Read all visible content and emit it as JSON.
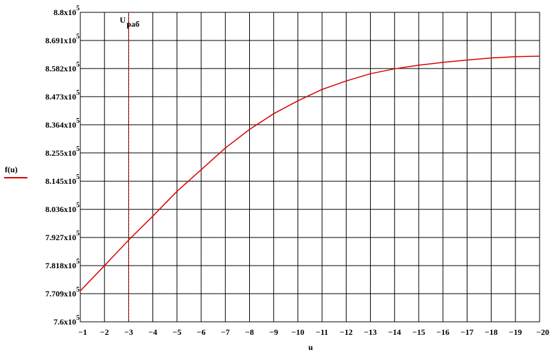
{
  "chart_data": {
    "type": "line",
    "title": "",
    "xlabel": "u",
    "ylabel": "f(u)",
    "xlim": [
      -1,
      -20
    ],
    "ylim": [
      760000,
      880000
    ],
    "grid": true,
    "legend_position": "left",
    "x_ticks": [
      {
        "value": -1,
        "label": "−1"
      },
      {
        "value": -2,
        "label": "−2"
      },
      {
        "value": -3,
        "label": "−3"
      },
      {
        "value": -4,
        "label": "−4"
      },
      {
        "value": -5,
        "label": "−5"
      },
      {
        "value": -6,
        "label": "−6"
      },
      {
        "value": -7,
        "label": "−7"
      },
      {
        "value": -8,
        "label": "−8"
      },
      {
        "value": -9,
        "label": "−9"
      },
      {
        "value": -10,
        "label": "−10"
      },
      {
        "value": -11,
        "label": "−11"
      },
      {
        "value": -12,
        "label": "−12"
      },
      {
        "value": -13,
        "label": "−13"
      },
      {
        "value": -14,
        "label": "−14"
      },
      {
        "value": -15,
        "label": "−15"
      },
      {
        "value": -16,
        "label": "−16"
      },
      {
        "value": -17,
        "label": "−17"
      },
      {
        "value": -18,
        "label": "−18"
      },
      {
        "value": -19,
        "label": "−19"
      },
      {
        "value": -20,
        "label": "−20"
      }
    ],
    "y_ticks": [
      {
        "value": 760000,
        "mantissa": "7.6x10",
        "exp": "5"
      },
      {
        "value": 770900,
        "mantissa": "7.709x10",
        "exp": "5"
      },
      {
        "value": 781800,
        "mantissa": "7.818x10",
        "exp": "5"
      },
      {
        "value": 792700,
        "mantissa": "7.927x10",
        "exp": "5"
      },
      {
        "value": 803600,
        "mantissa": "8.036x10",
        "exp": "5"
      },
      {
        "value": 814500,
        "mantissa": "8.145x10",
        "exp": "5"
      },
      {
        "value": 825500,
        "mantissa": "8.255x10",
        "exp": "5"
      },
      {
        "value": 836400,
        "mantissa": "8.364x10",
        "exp": "5"
      },
      {
        "value": 847300,
        "mantissa": "8.473x10",
        "exp": "5"
      },
      {
        "value": 858200,
        "mantissa": "8.582x10",
        "exp": "5"
      },
      {
        "value": 869100,
        "mantissa": "8.691x10",
        "exp": "5"
      },
      {
        "value": 880000,
        "mantissa": "8.8x10",
        "exp": "5"
      }
    ],
    "series": [
      {
        "name": "f(u)",
        "color": "#d80000",
        "x": [
          -1,
          -2,
          -3,
          -4,
          -5,
          -6,
          -7,
          -8,
          -9,
          -10,
          -11,
          -12,
          -13,
          -14,
          -15,
          -16,
          -17,
          -18,
          -19,
          -20
        ],
        "y": [
          772000,
          781800,
          791700,
          801000,
          810600,
          819000,
          827400,
          834600,
          840700,
          845700,
          850100,
          853400,
          856200,
          858100,
          859500,
          860600,
          861500,
          862300,
          862800,
          863000
        ]
      }
    ],
    "annotations": [
      {
        "type": "vline",
        "x": -3,
        "label": "U",
        "sub": "раб",
        "color": "#d80000"
      }
    ]
  }
}
